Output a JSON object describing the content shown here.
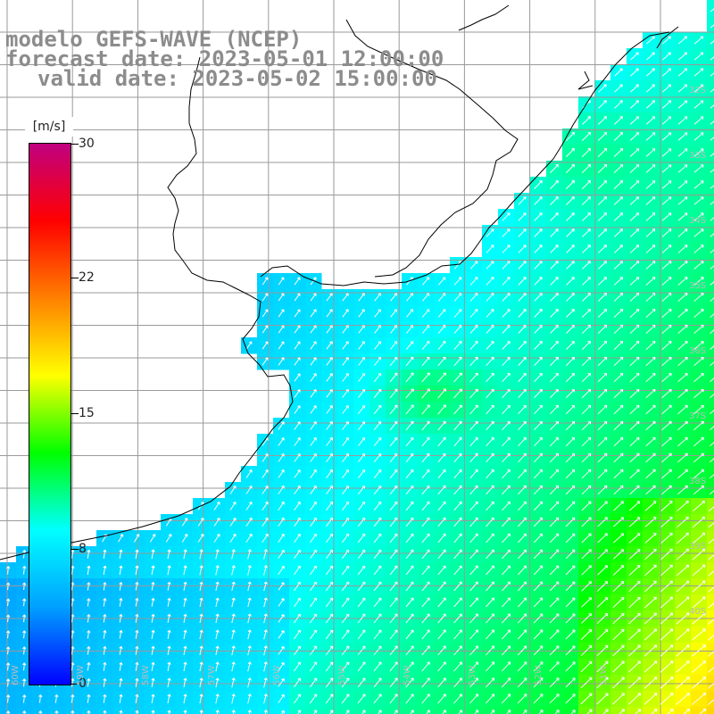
{
  "title": {
    "line1": "modelo GEFS-WAVE (NCEP)",
    "line2": "forecast date: 2023-05-01 12:00:00",
    "line3": "valid date: 2023-05-02 15:00:00"
  },
  "colorbar": {
    "unit": "[m/s]",
    "min": 0,
    "max": 30,
    "ticks": [
      "30",
      "22",
      "15",
      "8",
      "0"
    ],
    "colors": [
      "#0000ff",
      "#00a0ff",
      "#00ffff",
      "#00ff00",
      "#ffff00",
      "#ff8000",
      "#ff0000",
      "#c00080"
    ]
  },
  "map": {
    "land_color": "#ffffff",
    "grid_color": "#9a9a9a",
    "coast_color": "#000000",
    "arrow_color": "#ffffff",
    "lon_labels": [
      "60W",
      "59W",
      "58W",
      "57W",
      "56W",
      "55W",
      "54W",
      "53W",
      "52W",
      "51W"
    ],
    "lat_labels": [
      "32S",
      "33S",
      "34S",
      "35S",
      "36S",
      "37S",
      "38S",
      "39S",
      "40S"
    ]
  }
}
